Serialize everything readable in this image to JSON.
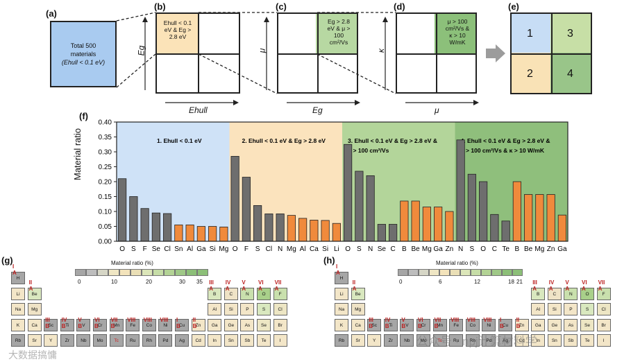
{
  "panels": {
    "a": {
      "label": "(a)",
      "text_lines": [
        "Total 500",
        "materials",
        "(Ehull < 0.1 eV)"
      ],
      "color": "#a9cbf0"
    },
    "b": {
      "label": "(b)",
      "cell_lines": [
        "Ehull < 0.1",
        "eV & Eg >",
        "2.8 eV"
      ],
      "x_label": "Ehull",
      "y_label": "Eg",
      "color": "#fbe3b8"
    },
    "c": {
      "label": "(c)",
      "cell_lines": [
        "Eg > 2.8",
        "eV & μ >",
        "100",
        "cm²/Vs"
      ],
      "x_label": "Eg",
      "y_label": "μ",
      "color": "#b7d8a2"
    },
    "d": {
      "label": "(d)",
      "cell_lines": [
        "μ > 100",
        "cm²/Vs &",
        "κ > 10",
        "W/mK"
      ],
      "x_label": "μ",
      "y_label": "κ",
      "color": "#8cc07a"
    },
    "e": {
      "label": "(e)",
      "quads": [
        "1",
        "3",
        "2",
        "4"
      ],
      "colors": [
        "#c7ddf5",
        "#c7dfa6",
        "#f9e2b6",
        "#99c589"
      ]
    }
  },
  "chart_data": {
    "type": "bar",
    "title": "",
    "panel_label": "(f)",
    "ylabel": "Material ratio",
    "ylim": [
      0,
      0.4
    ],
    "yticks": [
      "0.00",
      "0.05",
      "0.10",
      "0.15",
      "0.20",
      "0.25",
      "0.30",
      "0.35",
      "0.40"
    ],
    "groups": [
      {
        "name": "1",
        "label_lines": [
          "1. Ehull < 0.1 eV"
        ],
        "bg": "#cfe2f7",
        "categories": [
          "O",
          "S",
          "F",
          "Se",
          "Cl",
          "Sn",
          "Al",
          "Ga",
          "Si",
          "Mg"
        ],
        "values": [
          0.21,
          0.15,
          0.11,
          0.095,
          0.093,
          0.055,
          0.055,
          0.05,
          0.05,
          0.048
        ],
        "colors": [
          "g",
          "g",
          "g",
          "g",
          "g",
          "o",
          "o",
          "o",
          "o",
          "o"
        ]
      },
      {
        "name": "2",
        "label_lines": [
          "2. Ehull < 0.1 eV & Eg > 2.8 eV"
        ],
        "bg": "#fbe3bd",
        "categories": [
          "O",
          "F",
          "S",
          "Cl",
          "N",
          "Mg",
          "Al",
          "Ca",
          "Si",
          "Li"
        ],
        "values": [
          0.285,
          0.215,
          0.12,
          0.092,
          0.092,
          0.087,
          0.077,
          0.071,
          0.07,
          0.06
        ],
        "colors": [
          "g",
          "g",
          "g",
          "g",
          "g",
          "o",
          "o",
          "o",
          "o",
          "o"
        ]
      },
      {
        "name": "3",
        "label_lines": [
          "3. Ehull < 0.1 eV & Eg > 2.8 eV &",
          "μ > 100 cm²/Vs"
        ],
        "bg": "#b3d59a",
        "categories": [
          "O",
          "S",
          "N",
          "Se",
          "C",
          "B",
          "Be",
          "Mg",
          "Ga",
          "Zn"
        ],
        "values": [
          0.325,
          0.235,
          0.22,
          0.057,
          0.057,
          0.135,
          0.135,
          0.115,
          0.115,
          0.1
        ],
        "colors": [
          "g",
          "g",
          "g",
          "g",
          "g",
          "o",
          "o",
          "o",
          "o",
          "o"
        ]
      },
      {
        "name": "4",
        "label_lines": [
          "4. Ehull < 0.1 eV & Eg > 2.8 eV &",
          "μ > 100 cm²/Vs & κ > 10 W/mK"
        ],
        "bg": "#8fbf7c",
        "categories": [
          "N",
          "S",
          "O",
          "C",
          "Te",
          "B",
          "Be",
          "Mg",
          "Zn",
          "Ga"
        ],
        "values": [
          0.34,
          0.225,
          0.2,
          0.09,
          0.068,
          0.2,
          0.157,
          0.157,
          0.157,
          0.088
        ],
        "colors": [
          "g",
          "g",
          "g",
          "g",
          "g",
          "o",
          "o",
          "o",
          "o",
          "o"
        ]
      }
    ],
    "bar_colors": {
      "g": "#6e6e6e",
      "o": "#f08a3c"
    }
  },
  "periodic": {
    "g": {
      "label": "(g)",
      "cbar_title": "Material ratio (%)",
      "cbar_ticks": [
        "0",
        "10",
        "20",
        "30",
        "35"
      ]
    },
    "h": {
      "label": "(h)",
      "cbar_title": "Material ratio (%)",
      "cbar_ticks": [
        "0",
        "6",
        "12",
        "18",
        "21"
      ]
    },
    "groups_left": [
      "I A",
      "II A"
    ],
    "groups_mid": [
      "III B",
      "IV B",
      "V B",
      "VI B",
      "VII B",
      "VIII",
      "VIII",
      "VIII",
      "I B",
      "II B"
    ],
    "groups_right": [
      "III A",
      "IV A",
      "V A",
      "VI A",
      "VII A"
    ]
  },
  "watermarks": {
    "left": "大数据搞慵",
    "right": "公众号 · npj计算材料学"
  }
}
